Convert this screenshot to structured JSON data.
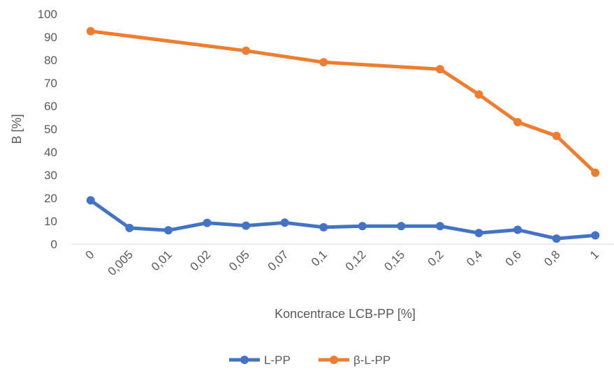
{
  "chart_data": {
    "type": "line",
    "categories": [
      "0",
      "0,005",
      "0,01",
      "0,02",
      "0,05",
      "0,07",
      "0,1",
      "0,12",
      "0,15",
      "0,2",
      "0,4",
      "0,6",
      "0,8",
      "1"
    ],
    "series": [
      {
        "name": "L-PP",
        "color": "#4472C4",
        "values": [
          19,
          7,
          6,
          9.2,
          8,
          9.3,
          7.3,
          7.8,
          7.8,
          7.8,
          4.8,
          6.2,
          2.4,
          3.8
        ]
      },
      {
        "name": "β-L-PP",
        "color": "#ED7D31",
        "values": [
          92.5,
          null,
          null,
          null,
          84,
          null,
          79,
          null,
          null,
          76,
          65,
          53,
          47,
          31
        ]
      }
    ],
    "xlabel": "Koncentrace LCB-PP [%]",
    "ylabel": "B [%]",
    "ylim": [
      0,
      100
    ],
    "yticks": [
      "0",
      "10",
      "20",
      "30",
      "40",
      "50",
      "60",
      "70",
      "80",
      "90",
      "100"
    ],
    "legend_position": "bottom",
    "grid": false
  }
}
